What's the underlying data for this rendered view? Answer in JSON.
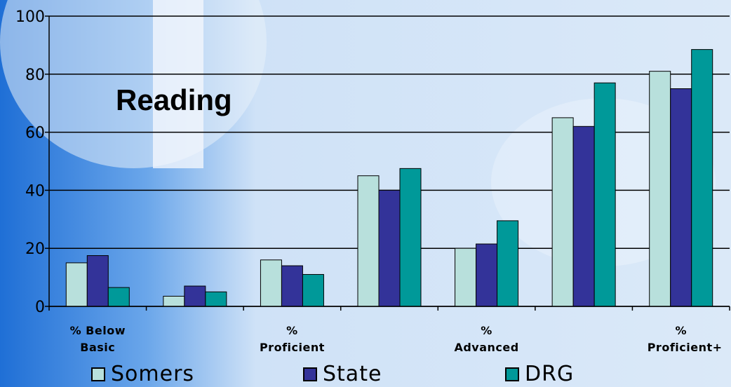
{
  "chart_data": {
    "type": "bar",
    "title": "Reading",
    "categories": [
      "% Below Basic",
      null,
      "% Proficient",
      null,
      "% Advanced",
      null,
      "% Proficient+"
    ],
    "series": [
      {
        "name": "Somers",
        "color": "#b8e0dc",
        "values": [
          15,
          3.5,
          16,
          45,
          20,
          65,
          81
        ]
      },
      {
        "name": "State",
        "color": "#333399",
        "values": [
          17.5,
          7,
          14,
          40,
          21.5,
          62,
          75
        ]
      },
      {
        "name": "DRG",
        "color": "#009999",
        "values": [
          6.5,
          5,
          11,
          47.5,
          29.5,
          77,
          88.5
        ]
      }
    ],
    "ylim": [
      0,
      100
    ],
    "yticks": [
      0,
      20,
      40,
      60,
      80,
      100
    ],
    "grid": true
  }
}
